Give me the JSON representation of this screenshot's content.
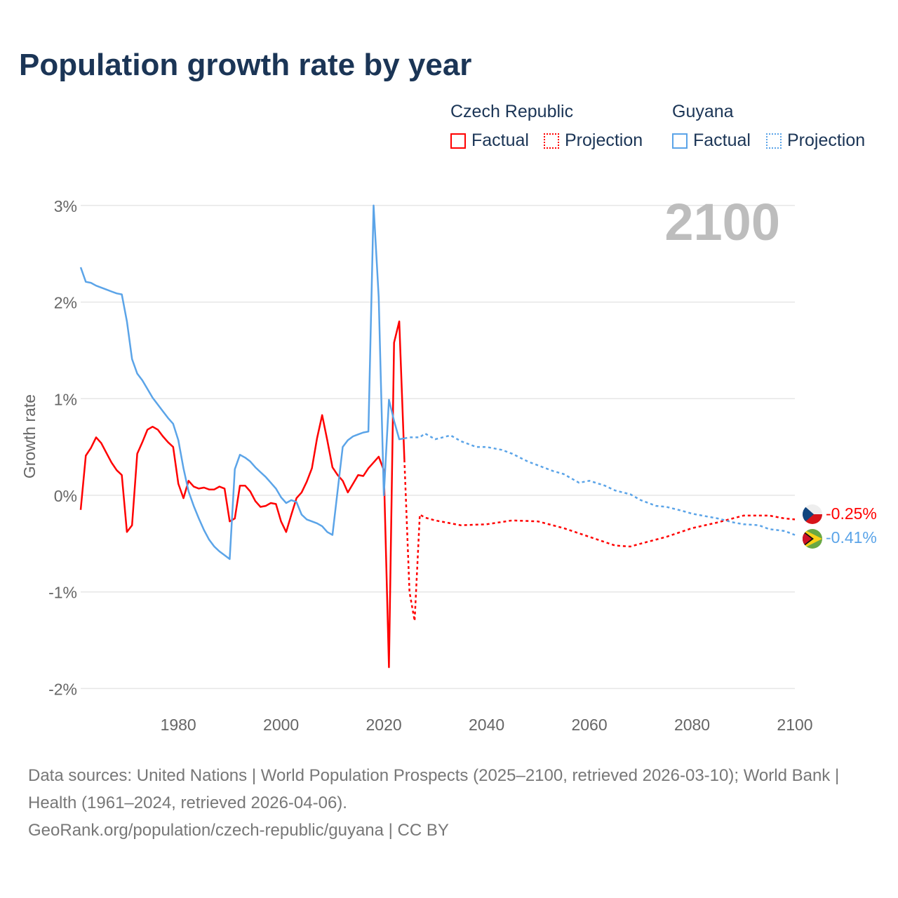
{
  "chart_data": {
    "type": "line",
    "title": "Population growth rate by year",
    "ylabel": "Growth rate",
    "xlabel": "",
    "xlim": [
      1961,
      2100
    ],
    "ylim": [
      -2,
      3
    ],
    "xticks": [
      1980,
      2000,
      2020,
      2040,
      2060,
      2080,
      2100
    ],
    "yticks": [
      {
        "v": 3,
        "label": "3%"
      },
      {
        "v": 2,
        "label": "2%"
      },
      {
        "v": 1,
        "label": "1%"
      },
      {
        "v": 0,
        "label": "0%"
      },
      {
        "v": -1,
        "label": "-1%"
      },
      {
        "v": -2,
        "label": "-2%"
      }
    ],
    "grid": true,
    "year_overlay": "2100",
    "legend": {
      "placement": "top-right",
      "groups": [
        {
          "name": "Czech Republic",
          "factual": "Factual",
          "projection": "Projection"
        },
        {
          "name": "Guyana",
          "factual": "Factual",
          "projection": "Projection"
        }
      ]
    },
    "series": [
      {
        "name": "Czech Republic",
        "color": "#ff0000",
        "end_label": "-0.25%",
        "factual": [
          [
            1961,
            -0.15
          ],
          [
            1962,
            0.41
          ],
          [
            1963,
            0.49
          ],
          [
            1964,
            0.6
          ],
          [
            1965,
            0.54
          ],
          [
            1966,
            0.44
          ],
          [
            1967,
            0.34
          ],
          [
            1968,
            0.26
          ],
          [
            1969,
            0.21
          ],
          [
            1970,
            -0.38
          ],
          [
            1971,
            -0.31
          ],
          [
            1972,
            0.43
          ],
          [
            1973,
            0.55
          ],
          [
            1974,
            0.68
          ],
          [
            1975,
            0.71
          ],
          [
            1976,
            0.68
          ],
          [
            1977,
            0.61
          ],
          [
            1978,
            0.55
          ],
          [
            1979,
            0.5
          ],
          [
            1980,
            0.12
          ],
          [
            1981,
            -0.03
          ],
          [
            1982,
            0.15
          ],
          [
            1983,
            0.09
          ],
          [
            1984,
            0.07
          ],
          [
            1985,
            0.08
          ],
          [
            1986,
            0.06
          ],
          [
            1987,
            0.06
          ],
          [
            1988,
            0.09
          ],
          [
            1989,
            0.07
          ],
          [
            1990,
            -0.27
          ],
          [
            1991,
            -0.24
          ],
          [
            1992,
            0.1
          ],
          [
            1993,
            0.1
          ],
          [
            1994,
            0.04
          ],
          [
            1995,
            -0.06
          ],
          [
            1996,
            -0.12
          ],
          [
            1997,
            -0.11
          ],
          [
            1998,
            -0.08
          ],
          [
            1999,
            -0.09
          ],
          [
            2000,
            -0.27
          ],
          [
            2001,
            -0.38
          ],
          [
            2002,
            -0.2
          ],
          [
            2003,
            -0.03
          ],
          [
            2004,
            0.03
          ],
          [
            2005,
            0.14
          ],
          [
            2006,
            0.28
          ],
          [
            2007,
            0.59
          ],
          [
            2008,
            0.83
          ],
          [
            2009,
            0.57
          ],
          [
            2010,
            0.29
          ],
          [
            2011,
            0.21
          ],
          [
            2012,
            0.15
          ],
          [
            2013,
            0.03
          ],
          [
            2014,
            0.12
          ],
          [
            2015,
            0.21
          ],
          [
            2016,
            0.2
          ],
          [
            2017,
            0.28
          ],
          [
            2018,
            0.34
          ],
          [
            2019,
            0.4
          ],
          [
            2020,
            0.26
          ],
          [
            2021,
            -1.78
          ],
          [
            2022,
            1.58
          ],
          [
            2023,
            1.8
          ],
          [
            2024,
            0.37
          ]
        ],
        "projection": [
          [
            2024,
            0.37
          ],
          [
            2025,
            -1.0
          ],
          [
            2026,
            -1.3
          ],
          [
            2027,
            -0.2
          ],
          [
            2028,
            -0.23
          ],
          [
            2030,
            -0.26
          ],
          [
            2035,
            -0.31
          ],
          [
            2040,
            -0.3
          ],
          [
            2045,
            -0.26
          ],
          [
            2050,
            -0.27
          ],
          [
            2055,
            -0.34
          ],
          [
            2060,
            -0.43
          ],
          [
            2065,
            -0.52
          ],
          [
            2068,
            -0.53
          ],
          [
            2070,
            -0.5
          ],
          [
            2075,
            -0.43
          ],
          [
            2080,
            -0.34
          ],
          [
            2085,
            -0.28
          ],
          [
            2090,
            -0.21
          ],
          [
            2095,
            -0.21
          ],
          [
            2098,
            -0.24
          ],
          [
            2100,
            -0.25
          ]
        ]
      },
      {
        "name": "Guyana",
        "color": "#5ba4e8",
        "end_label": "-0.41%",
        "factual": [
          [
            1961,
            2.36
          ],
          [
            1962,
            2.21
          ],
          [
            1963,
            2.2
          ],
          [
            1964,
            2.17
          ],
          [
            1965,
            2.15
          ],
          [
            1966,
            2.13
          ],
          [
            1967,
            2.11
          ],
          [
            1968,
            2.09
          ],
          [
            1969,
            2.08
          ],
          [
            1970,
            1.8
          ],
          [
            1971,
            1.41
          ],
          [
            1972,
            1.26
          ],
          [
            1973,
            1.19
          ],
          [
            1974,
            1.1
          ],
          [
            1975,
            1.01
          ],
          [
            1976,
            0.94
          ],
          [
            1977,
            0.87
          ],
          [
            1978,
            0.8
          ],
          [
            1979,
            0.74
          ],
          [
            1980,
            0.57
          ],
          [
            1981,
            0.28
          ],
          [
            1982,
            0.04
          ],
          [
            1983,
            -0.11
          ],
          [
            1984,
            -0.24
          ],
          [
            1985,
            -0.36
          ],
          [
            1986,
            -0.46
          ],
          [
            1987,
            -0.53
          ],
          [
            1988,
            -0.58
          ],
          [
            1989,
            -0.62
          ],
          [
            1990,
            -0.66
          ],
          [
            1991,
            0.27
          ],
          [
            1992,
            0.42
          ],
          [
            1993,
            0.39
          ],
          [
            1994,
            0.35
          ],
          [
            1995,
            0.29
          ],
          [
            1996,
            0.24
          ],
          [
            1997,
            0.19
          ],
          [
            1998,
            0.13
          ],
          [
            1999,
            0.07
          ],
          [
            2000,
            -0.02
          ],
          [
            2001,
            -0.08
          ],
          [
            2002,
            -0.05
          ],
          [
            2003,
            -0.07
          ],
          [
            2004,
            -0.2
          ],
          [
            2005,
            -0.25
          ],
          [
            2006,
            -0.27
          ],
          [
            2007,
            -0.29
          ],
          [
            2008,
            -0.32
          ],
          [
            2009,
            -0.38
          ],
          [
            2010,
            -0.41
          ],
          [
            2012,
            0.5
          ],
          [
            2013,
            0.57
          ],
          [
            2014,
            0.61
          ],
          [
            2015,
            0.63
          ],
          [
            2016,
            0.65
          ],
          [
            2017,
            0.66
          ],
          [
            2018,
            3.0
          ],
          [
            2019,
            2.05
          ],
          [
            2020,
            0.0
          ],
          [
            2021,
            0.99
          ],
          [
            2022,
            0.77
          ],
          [
            2023,
            0.58
          ],
          [
            2024,
            0.59
          ]
        ],
        "projection": [
          [
            2024,
            0.59
          ],
          [
            2025,
            0.6
          ],
          [
            2027,
            0.6
          ],
          [
            2028,
            0.64
          ],
          [
            2030,
            0.58
          ],
          [
            2033,
            0.62
          ],
          [
            2035,
            0.56
          ],
          [
            2038,
            0.5
          ],
          [
            2040,
            0.5
          ],
          [
            2043,
            0.47
          ],
          [
            2045,
            0.43
          ],
          [
            2048,
            0.35
          ],
          [
            2050,
            0.31
          ],
          [
            2053,
            0.25
          ],
          [
            2055,
            0.22
          ],
          [
            2058,
            0.13
          ],
          [
            2060,
            0.15
          ],
          [
            2063,
            0.1
          ],
          [
            2065,
            0.05
          ],
          [
            2068,
            0.01
          ],
          [
            2070,
            -0.05
          ],
          [
            2073,
            -0.11
          ],
          [
            2075,
            -0.12
          ],
          [
            2078,
            -0.16
          ],
          [
            2080,
            -0.19
          ],
          [
            2083,
            -0.22
          ],
          [
            2085,
            -0.24
          ],
          [
            2088,
            -0.28
          ],
          [
            2090,
            -0.3
          ],
          [
            2093,
            -0.31
          ],
          [
            2095,
            -0.35
          ],
          [
            2098,
            -0.37
          ],
          [
            2100,
            -0.41
          ]
        ]
      }
    ]
  },
  "footer": {
    "sources": "Data sources: United Nations | World Population Prospects (2025–2100, retrieved 2026-03-10); World Bank | Health (1961–2024, retrieved 2026-04-06).",
    "credit": "GeoRank.org/population/czech-republic/guyana | CC BY"
  }
}
